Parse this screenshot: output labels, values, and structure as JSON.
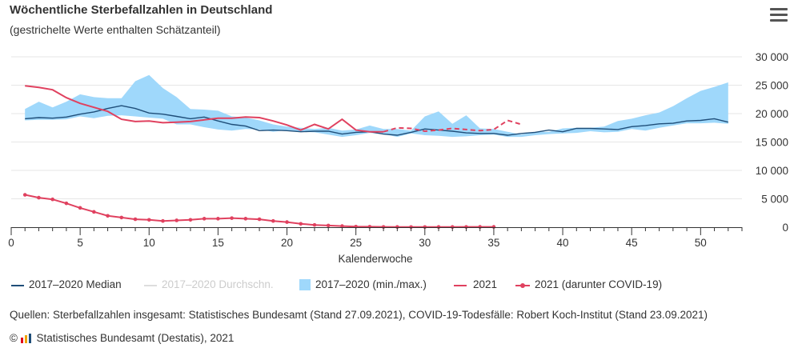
{
  "header": {
    "title": "Wöchentliche Sterbefallzahlen in Deutschland",
    "subtitle": "(gestrichelte Werte enthalten Schätzanteil)",
    "menu_icon": "hamburger-menu-icon"
  },
  "legend": {
    "median": "2017–2020 Median",
    "average": "2017–2020 Durchschn.",
    "range": "2017–2020 (min./max.)",
    "y2021": "2021",
    "covid": "2021 (darunter COVID-19)"
  },
  "footer": {
    "source": "Quellen: Sterbefallzahlen insgesamt: Statistisches Bundesamt (Stand 27.09.2021), COVID-19-Todesfälle: Robert Koch-Institut (Stand 23.09.2021)",
    "copyright_symbol": "©",
    "copyright": "Statistisches Bundesamt (Destatis), 2021"
  },
  "colors": {
    "median": "#1f4e79",
    "range": "#9fd8fb",
    "y2021": "#e0415f",
    "average": "#dddddd",
    "axis": "#333333",
    "grid": "#e6e6e6"
  },
  "chart_data": {
    "type": "line",
    "title": "Wöchentliche Sterbefallzahlen in Deutschland",
    "subtitle": "(gestrichelte Werte enthalten Schätzanteil)",
    "xlabel": "Kalenderwoche",
    "ylabel": "",
    "xlim": [
      0,
      53
    ],
    "ylim": [
      0,
      30000
    ],
    "x_ticks": [
      0,
      5,
      10,
      15,
      20,
      25,
      30,
      35,
      40,
      45,
      50
    ],
    "y_ticks": [
      0,
      5000,
      10000,
      15000,
      20000,
      25000,
      30000
    ],
    "y_tick_labels": [
      "0",
      "5 000",
      "10 000",
      "15 000",
      "20 000",
      "25 000",
      "30 000"
    ],
    "grid": "horizontal",
    "weeks": [
      1,
      2,
      3,
      4,
      5,
      6,
      7,
      8,
      9,
      10,
      11,
      12,
      13,
      14,
      15,
      16,
      17,
      18,
      19,
      20,
      21,
      22,
      23,
      24,
      25,
      26,
      27,
      28,
      29,
      30,
      31,
      32,
      33,
      34,
      35,
      36,
      37,
      38,
      39,
      40,
      41,
      42,
      43,
      44,
      45,
      46,
      47,
      48,
      49,
      50,
      51,
      52
    ],
    "series": [
      {
        "name": "2017–2020 (min./max.)",
        "kind": "range",
        "min": [
          18800,
          18900,
          18900,
          19000,
          19500,
          19200,
          19600,
          19700,
          19500,
          19300,
          19100,
          18100,
          18100,
          17600,
          17200,
          17000,
          17300,
          17200,
          16800,
          17100,
          16800,
          16700,
          16300,
          15900,
          16200,
          16600,
          16400,
          15900,
          16500,
          16200,
          16100,
          15900,
          16000,
          16200,
          16300,
          15900,
          15900,
          16200,
          16400,
          16500,
          16600,
          16900,
          16700,
          16800,
          17300,
          17000,
          17500,
          17900,
          18300,
          18300,
          18400,
          18200
        ],
        "max": [
          20800,
          22100,
          21100,
          22100,
          23400,
          22900,
          22700,
          22700,
          25700,
          26800,
          24500,
          22900,
          20800,
          20700,
          20500,
          19500,
          19300,
          18800,
          18100,
          17700,
          17500,
          17300,
          17500,
          17000,
          17200,
          17900,
          17300,
          17300,
          17000,
          19500,
          20400,
          18200,
          19700,
          17400,
          17300,
          16800,
          16300,
          16800,
          16800,
          17400,
          17500,
          17500,
          17700,
          18700,
          19100,
          19700,
          20200,
          21300,
          22700,
          24000,
          24700,
          25500
        ]
      },
      {
        "name": "2017–2020 Median",
        "kind": "line",
        "values": [
          19100,
          19300,
          19200,
          19400,
          19900,
          20300,
          20900,
          21400,
          20900,
          20100,
          19900,
          19500,
          19100,
          19400,
          18700,
          18100,
          17800,
          17000,
          17100,
          17000,
          16800,
          16900,
          16900,
          16400,
          16700,
          16800,
          16400,
          16200,
          16700,
          17300,
          17100,
          16900,
          16600,
          16500,
          16500,
          16200,
          16500,
          16700,
          17100,
          16800,
          17400,
          17400,
          17300,
          17200,
          17700,
          17900,
          18200,
          18300,
          18700,
          18800,
          19100,
          18500
        ]
      },
      {
        "name": "2017–2020 Durchschn.",
        "kind": "line",
        "hidden": true,
        "values": []
      },
      {
        "name": "2021",
        "kind": "line",
        "estimated_from_week": 27,
        "values": [
          24900,
          24600,
          24200,
          22800,
          21800,
          21100,
          20400,
          19000,
          18600,
          18700,
          18400,
          18500,
          18600,
          18900,
          19200,
          19200,
          19400,
          19300,
          18700,
          18000,
          17100,
          18100,
          17300,
          19000,
          17100,
          16800,
          16800,
          17500,
          17400,
          16900,
          17100,
          17400,
          17200,
          17000,
          17200,
          18800,
          18100
        ]
      },
      {
        "name": "2021 (darunter COVID-19)",
        "kind": "line-marker",
        "values": [
          5700,
          5200,
          4900,
          4200,
          3400,
          2700,
          2000,
          1700,
          1400,
          1300,
          1100,
          1200,
          1300,
          1500,
          1500,
          1600,
          1500,
          1400,
          1100,
          900,
          600,
          400,
          300,
          200,
          100,
          80,
          50,
          40,
          30,
          30,
          40,
          40,
          50,
          60,
          60
        ]
      }
    ]
  }
}
